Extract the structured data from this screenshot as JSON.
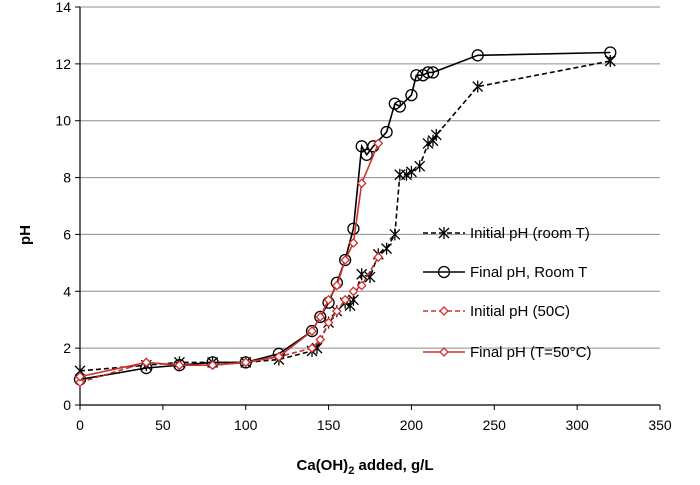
{
  "chart_data": {
    "type": "line",
    "xlabel": "Ca(OH)",
    "xlabel_sub": "2",
    "xlabel_rest": " added, g/L",
    "ylabel": "pH",
    "xlim": [
      0,
      350
    ],
    "ylim": [
      0,
      14
    ],
    "x_ticks": [
      "0",
      "50",
      "100",
      "150",
      "200",
      "250",
      "300",
      "350"
    ],
    "y_ticks": [
      "0",
      "2",
      "4",
      "6",
      "8",
      "10",
      "12",
      "14"
    ],
    "grid": "horizontal",
    "legend_position": "right",
    "series": [
      {
        "name": "Initial pH (room T)",
        "color": "#000000",
        "line_style": "dashed",
        "marker": "asterisk",
        "x": [
          0,
          40,
          60,
          80,
          100,
          120,
          140,
          143,
          150,
          155,
          160,
          163,
          165,
          170,
          175,
          180,
          185,
          190,
          193,
          197,
          200,
          205,
          210,
          213,
          215,
          240,
          320
        ],
        "y": [
          1.2,
          1.4,
          1.5,
          1.5,
          1.5,
          1.6,
          1.9,
          2.0,
          2.9,
          3.3,
          3.6,
          3.5,
          3.7,
          4.6,
          4.5,
          5.3,
          5.5,
          6.0,
          8.1,
          8.1,
          8.2,
          8.4,
          9.2,
          9.3,
          9.5,
          11.2,
          12.1
        ]
      },
      {
        "name": "Final pH, Room T",
        "color": "#000000",
        "line_style": "solid",
        "marker": "circle",
        "x": [
          0,
          40,
          60,
          80,
          100,
          120,
          140,
          145,
          150,
          155,
          160,
          165,
          170,
          173,
          177,
          185,
          190,
          193,
          200,
          203,
          207,
          210,
          213,
          240,
          320
        ],
        "y": [
          0.9,
          1.3,
          1.4,
          1.5,
          1.5,
          1.8,
          2.6,
          3.1,
          3.6,
          4.3,
          5.1,
          6.2,
          9.1,
          8.8,
          9.1,
          9.6,
          10.6,
          10.5,
          10.9,
          11.6,
          11.6,
          11.7,
          11.7,
          12.3,
          12.4
        ]
      },
      {
        "name": "Initial pH (50C)",
        "color": "#d0312d",
        "line_style": "dashed",
        "marker": "diamond",
        "x": [
          0,
          40,
          60,
          80,
          100,
          120,
          140,
          145,
          150,
          155,
          160,
          165,
          170,
          180
        ],
        "y": [
          0.8,
          1.5,
          1.4,
          1.4,
          1.5,
          1.7,
          2.0,
          2.3,
          2.9,
          3.3,
          3.7,
          4.0,
          4.2,
          5.2
        ]
      },
      {
        "name": "Final pH (T=50°C)",
        "color": "#d0312d",
        "line_style": "solid",
        "marker": "diamond",
        "x": [
          0,
          40,
          60,
          80,
          100,
          120,
          140,
          145,
          150,
          155,
          160,
          165,
          170,
          180
        ],
        "y": [
          1.0,
          1.5,
          1.4,
          1.4,
          1.5,
          1.7,
          2.6,
          3.1,
          3.7,
          4.2,
          5.1,
          5.7,
          7.8,
          9.2
        ]
      }
    ]
  }
}
